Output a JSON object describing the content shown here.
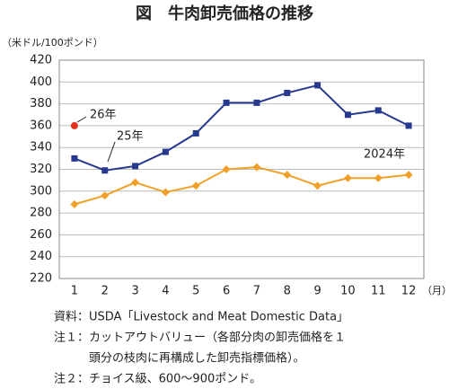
{
  "chart_data": {
    "type": "line",
    "title": "図　牛肉卸売価格の推移",
    "y_label": "（米ドル/100ポンド）",
    "x_label": "（月）",
    "categories": [
      "1",
      "2",
      "3",
      "4",
      "5",
      "6",
      "7",
      "8",
      "9",
      "10",
      "11",
      "12"
    ],
    "series": [
      {
        "name": "2024年",
        "color": "#f0a028",
        "marker": "diamond",
        "values": [
          288,
          296,
          308,
          299,
          305,
          320,
          322,
          315,
          305,
          312,
          312,
          315
        ]
      },
      {
        "name": "25年",
        "color": "#27388f",
        "marker": "square",
        "values": [
          330,
          319,
          323,
          336,
          353,
          381,
          381,
          390,
          397,
          370,
          374,
          360
        ]
      },
      {
        "name": "26年",
        "color": "#e0321e",
        "marker": "circle",
        "values": [
          360,
          null,
          null,
          null,
          null,
          null,
          null,
          null,
          null,
          null,
          null,
          null
        ]
      }
    ],
    "ylim": [
      220,
      420
    ],
    "yticks": [
      220,
      240,
      260,
      280,
      300,
      320,
      340,
      360,
      380,
      400,
      420
    ],
    "grid": true,
    "notes": [
      "資料：USDA「Livestock and Meat Domestic Data」",
      "注１：カットアウトバリュー（各部分肉の卸売価格を１",
      "　　　頭分の枝肉に再構成した卸売指標価格）。",
      "注２：チョイス級、600～900ポンド。"
    ]
  }
}
